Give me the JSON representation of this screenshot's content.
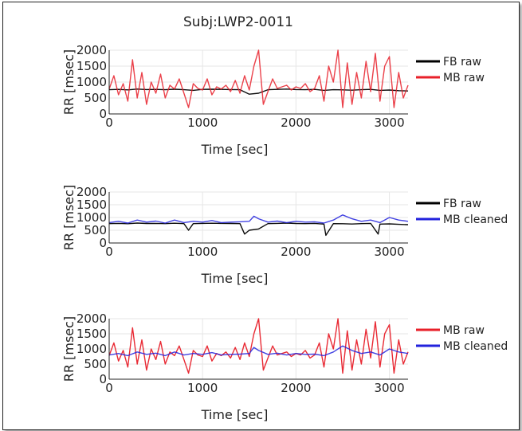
{
  "figure": {
    "title": "Subj:LWP2-0011"
  },
  "colors": {
    "fb_raw": "#000000",
    "mb_raw": "#e8202a",
    "mb_cleaned": "#2222dd",
    "grid": "#e6e6e6"
  },
  "chart_data": [
    {
      "type": "line",
      "xlabel": "Time [sec]",
      "ylabel": "RR [msec]",
      "xlim": [
        0,
        3200
      ],
      "ylim": [
        0,
        2000
      ],
      "xticks": [
        "0",
        "1000",
        "2000",
        "3000"
      ],
      "yticks": [
        "0",
        "500",
        "1000",
        "1500",
        "2000"
      ],
      "grid": true,
      "legend_position": "right",
      "series": [
        {
          "name": "FB raw",
          "color": "#000000",
          "x": [
            0,
            100,
            200,
            300,
            400,
            500,
            600,
            700,
            800,
            900,
            1000,
            1100,
            1200,
            1300,
            1400,
            1500,
            1600,
            1700,
            1800,
            1900,
            2000,
            2100,
            2200,
            2300,
            2400,
            2500,
            2600,
            2700,
            2800,
            2900,
            3000,
            3100,
            3200
          ],
          "y": [
            760,
            770,
            755,
            780,
            765,
            770,
            760,
            775,
            760,
            740,
            770,
            775,
            770,
            765,
            760,
            620,
            650,
            760,
            770,
            780,
            765,
            760,
            770,
            740,
            760,
            755,
            745,
            760,
            770,
            740,
            750,
            730,
            720
          ]
        },
        {
          "name": "MB raw",
          "color": "#e8202a",
          "x": [
            0,
            50,
            100,
            150,
            200,
            250,
            300,
            350,
            400,
            450,
            500,
            550,
            600,
            650,
            700,
            750,
            800,
            850,
            900,
            950,
            1000,
            1050,
            1100,
            1150,
            1200,
            1250,
            1300,
            1350,
            1400,
            1450,
            1500,
            1550,
            1600,
            1650,
            1700,
            1750,
            1800,
            1850,
            1900,
            1950,
            2000,
            2050,
            2100,
            2150,
            2200,
            2250,
            2300,
            2350,
            2400,
            2450,
            2500,
            2550,
            2600,
            2650,
            2700,
            2750,
            2800,
            2850,
            2900,
            2950,
            3000,
            3050,
            3100,
            3150,
            3200
          ],
          "y": [
            780,
            1200,
            600,
            950,
            400,
            1700,
            500,
            1300,
            300,
            1000,
            650,
            1250,
            500,
            900,
            780,
            1100,
            650,
            200,
            950,
            800,
            750,
            1100,
            600,
            850,
            780,
            900,
            700,
            1050,
            650,
            1200,
            750,
            1500,
            2000,
            300,
            700,
            1100,
            800,
            850,
            900,
            750,
            850,
            800,
            950,
            700,
            800,
            1200,
            400,
            1500,
            1000,
            2000,
            200,
            1600,
            300,
            1300,
            500,
            1650,
            700,
            1900,
            400,
            1500,
            1800,
            200,
            1300,
            500,
            900
          ]
        }
      ]
    },
    {
      "type": "line",
      "xlabel": "Time [sec]",
      "ylabel": "RR [msec]",
      "xlim": [
        0,
        3200
      ],
      "ylim": [
        0,
        2000
      ],
      "xticks": [
        "0",
        "1000",
        "2000",
        "3000"
      ],
      "yticks": [
        "0",
        "500",
        "1000",
        "1500",
        "2000"
      ],
      "grid": true,
      "legend_position": "right",
      "series": [
        {
          "name": "FB raw",
          "color": "#000000",
          "x": [
            0,
            100,
            200,
            300,
            400,
            500,
            600,
            700,
            800,
            850,
            900,
            1000,
            1100,
            1200,
            1300,
            1400,
            1450,
            1500,
            1600,
            1700,
            1800,
            1900,
            2000,
            2100,
            2200,
            2300,
            2320,
            2400,
            2500,
            2600,
            2700,
            2800,
            2880,
            2900,
            3000,
            3100,
            3200
          ],
          "y": [
            760,
            770,
            755,
            780,
            765,
            770,
            760,
            775,
            760,
            500,
            760,
            770,
            775,
            770,
            765,
            760,
            350,
            500,
            550,
            760,
            770,
            780,
            765,
            760,
            770,
            740,
            300,
            760,
            755,
            745,
            760,
            770,
            350,
            740,
            750,
            730,
            720
          ]
        },
        {
          "name": "MB cleaned",
          "color": "#2222dd",
          "x": [
            0,
            100,
            200,
            300,
            400,
            500,
            600,
            700,
            800,
            900,
            1000,
            1100,
            1200,
            1300,
            1400,
            1500,
            1550,
            1600,
            1700,
            1800,
            1900,
            2000,
            2100,
            2200,
            2300,
            2400,
            2500,
            2600,
            2700,
            2800,
            2900,
            3000,
            3100,
            3200
          ],
          "y": [
            800,
            850,
            780,
            900,
            820,
            860,
            780,
            900,
            800,
            850,
            820,
            880,
            800,
            820,
            830,
            850,
            1050,
            950,
            820,
            860,
            800,
            850,
            820,
            830,
            780,
            900,
            1100,
            950,
            850,
            900,
            800,
            1000,
            900,
            850
          ]
        }
      ]
    },
    {
      "type": "line",
      "xlabel": "Time [sec]",
      "ylabel": "RR [msec]",
      "xlim": [
        0,
        3200
      ],
      "ylim": [
        0,
        2000
      ],
      "xticks": [
        "0",
        "1000",
        "2000",
        "3000"
      ],
      "yticks": [
        "0",
        "500",
        "1000",
        "1500",
        "2000"
      ],
      "grid": true,
      "legend_position": "right",
      "series": [
        {
          "name": "MB raw",
          "color": "#e8202a",
          "x": [
            0,
            50,
            100,
            150,
            200,
            250,
            300,
            350,
            400,
            450,
            500,
            550,
            600,
            650,
            700,
            750,
            800,
            850,
            900,
            950,
            1000,
            1050,
            1100,
            1150,
            1200,
            1250,
            1300,
            1350,
            1400,
            1450,
            1500,
            1550,
            1600,
            1650,
            1700,
            1750,
            1800,
            1850,
            1900,
            1950,
            2000,
            2050,
            2100,
            2150,
            2200,
            2250,
            2300,
            2350,
            2400,
            2450,
            2500,
            2550,
            2600,
            2650,
            2700,
            2750,
            2800,
            2850,
            2900,
            2950,
            3000,
            3050,
            3100,
            3150,
            3200
          ],
          "y": [
            780,
            1200,
            600,
            950,
            400,
            1700,
            500,
            1300,
            300,
            1000,
            650,
            1250,
            500,
            900,
            780,
            1100,
            650,
            200,
            950,
            800,
            750,
            1100,
            600,
            850,
            780,
            900,
            700,
            1050,
            650,
            1200,
            750,
            1500,
            2000,
            300,
            700,
            1100,
            800,
            850,
            900,
            750,
            850,
            800,
            950,
            700,
            800,
            1200,
            400,
            1500,
            1000,
            2000,
            200,
            1600,
            300,
            1300,
            500,
            1650,
            700,
            1900,
            400,
            1500,
            1800,
            200,
            1300,
            500,
            900
          ]
        },
        {
          "name": "MB cleaned",
          "color": "#2222dd",
          "x": [
            0,
            100,
            200,
            300,
            400,
            500,
            600,
            700,
            800,
            900,
            1000,
            1100,
            1200,
            1300,
            1400,
            1500,
            1550,
            1600,
            1700,
            1800,
            1900,
            2000,
            2100,
            2200,
            2300,
            2400,
            2500,
            2600,
            2700,
            2800,
            2900,
            3000,
            3100,
            3200
          ],
          "y": [
            800,
            850,
            780,
            900,
            820,
            860,
            780,
            900,
            800,
            850,
            820,
            880,
            800,
            820,
            830,
            850,
            1050,
            950,
            820,
            860,
            800,
            850,
            820,
            830,
            780,
            900,
            1100,
            950,
            850,
            900,
            800,
            1000,
            900,
            850
          ]
        }
      ]
    }
  ]
}
